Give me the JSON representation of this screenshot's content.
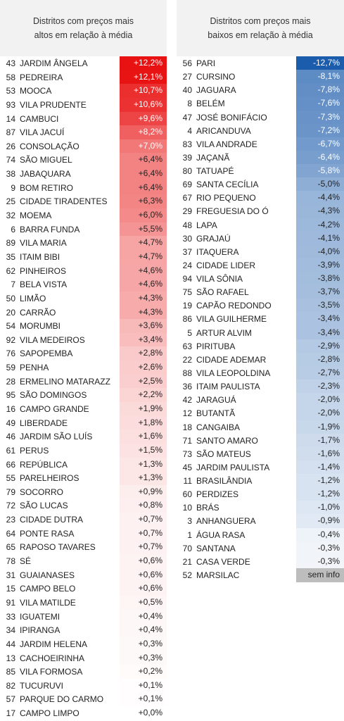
{
  "columns": [
    {
      "header": [
        "Distritos com preços mais",
        "altos em relação à média"
      ],
      "rows": [
        [
          "43",
          "JARDIM ÂNGELA",
          "+12,2%"
        ],
        [
          "58",
          "PEDREIRA",
          "+12,1%"
        ],
        [
          "53",
          "MOOCA",
          "+10,7%"
        ],
        [
          "93",
          "VILA PRUDENTE",
          "+10,6%"
        ],
        [
          "14",
          "CAMBUCI",
          "+9,6%"
        ],
        [
          "87",
          "VILA JACUÍ",
          "+8,2%"
        ],
        [
          "26",
          "CONSOLAÇÃO",
          "+7,0%"
        ],
        [
          "74",
          "SÃO MIGUEL",
          "+6,4%"
        ],
        [
          "38",
          "JABAQUARA",
          "+6,4%"
        ],
        [
          "9",
          "BOM RETIRO",
          "+6,4%"
        ],
        [
          "25",
          "CIDADE TIRADENTES",
          "+6,3%"
        ],
        [
          "32",
          "MOEMA",
          "+6,0%"
        ],
        [
          "6",
          "BARRA FUNDA",
          "+5,5%"
        ],
        [
          "89",
          "VILA MARIA",
          "+4,7%"
        ],
        [
          "35",
          "ITAIM BIBI",
          "+4,7%"
        ],
        [
          "62",
          "PINHEIROS",
          "+4,6%"
        ],
        [
          "7",
          "BELA VISTA",
          "+4,6%"
        ],
        [
          "50",
          "LIMÃO",
          "+4,3%"
        ],
        [
          "20",
          "CARRÃO",
          "+4,3%"
        ],
        [
          "54",
          "MORUMBI",
          "+3,6%"
        ],
        [
          "92",
          "VILA MEDEIROS",
          "+3,4%"
        ],
        [
          "76",
          "SAPOPEMBA",
          "+2,8%"
        ],
        [
          "59",
          "PENHA",
          "+2,6%"
        ],
        [
          "28",
          "ERMELINO MATARAZZ",
          "+2,5%"
        ],
        [
          "95",
          "SÃO DOMINGOS",
          "+2,2%"
        ],
        [
          "16",
          "CAMPO GRANDE",
          "+1,9%"
        ],
        [
          "49",
          "LIBERDADE",
          "+1,8%"
        ],
        [
          "46",
          "JARDIM SÃO LUÍS",
          "+1,6%"
        ],
        [
          "61",
          "PERUS",
          "+1,5%"
        ],
        [
          "66",
          "REPÚBLICA",
          "+1,3%"
        ],
        [
          "55",
          "PARELHEIROS",
          "+1,3%"
        ],
        [
          "79",
          "SOCORRO",
          "+0,9%"
        ],
        [
          "72",
          "SÃO LUCAS",
          "+0,8%"
        ],
        [
          "23",
          "CIDADE DUTRA",
          "+0,7%"
        ],
        [
          "64",
          "PONTE RASA",
          "+0,7%"
        ],
        [
          "65",
          "RAPOSO TAVARES",
          "+0,7%"
        ],
        [
          "78",
          "SÉ",
          "+0,6%"
        ],
        [
          "31",
          "GUAIANASES",
          "+0,6%"
        ],
        [
          "15",
          "CAMPO BELO",
          "+0,6%"
        ],
        [
          "91",
          "VILA MATILDE",
          "+0,5%"
        ],
        [
          "33",
          "IGUATEMI",
          "+0,4%"
        ],
        [
          "34",
          "IPIRANGA",
          "+0,4%"
        ],
        [
          "44",
          "JARDIM HELENA",
          "+0,3%"
        ],
        [
          "13",
          "CACHOEIRINHA",
          "+0,3%"
        ],
        [
          "85",
          "VILA FORMOSA",
          "+0,2%"
        ],
        [
          "82",
          "TUCURUVI",
          "+0,1%"
        ],
        [
          "57",
          "PARQUE DO CARMO",
          "+0,1%"
        ],
        [
          "17",
          "CAMPO LIMPO",
          "+0,0%"
        ]
      ]
    },
    {
      "header": [
        "Distritos com preços mais",
        "baixos em relação à média"
      ],
      "rows": [
        [
          "56",
          "PARI",
          "-12,7%"
        ],
        [
          "27",
          "CURSINO",
          "-8,1%"
        ],
        [
          "40",
          "JAGUARA",
          "-7,8%"
        ],
        [
          "8",
          "BELÉM",
          "-7,6%"
        ],
        [
          "47",
          "JOSÉ BONIFÁCIO",
          "-7,3%"
        ],
        [
          "4",
          "ARICANDUVA",
          "-7,2%"
        ],
        [
          "83",
          "VILA ANDRADE",
          "-6,7%"
        ],
        [
          "39",
          "JAÇANÃ",
          "-6,4%"
        ],
        [
          "80",
          "TATUAPÉ",
          "-5,8%"
        ],
        [
          "69",
          "SANTA CECÍLIA",
          "-5,0%"
        ],
        [
          "67",
          "RIO PEQUENO",
          "-4,4%"
        ],
        [
          "29",
          "FREGUESIA DO Ó",
          "-4,3%"
        ],
        [
          "48",
          "LAPA",
          "-4,2%"
        ],
        [
          "30",
          "GRAJAÚ",
          "-4,1%"
        ],
        [
          "37",
          "ITAQUERA",
          "-4,0%"
        ],
        [
          "24",
          "CIDADE LIDER",
          "-3,9%"
        ],
        [
          "94",
          "VILA SÔNIA",
          "-3,8%"
        ],
        [
          "75",
          "SÃO RAFAEL",
          "-3,7%"
        ],
        [
          "19",
          "CAPÃO REDONDO",
          "-3,5%"
        ],
        [
          "86",
          "VILA GUILHERME",
          "-3,4%"
        ],
        [
          "5",
          "ARTUR ALVIM",
          "-3,4%"
        ],
        [
          "63",
          "PIRITUBA",
          "-2,9%"
        ],
        [
          "22",
          "CIDADE ADEMAR",
          "-2,8%"
        ],
        [
          "88",
          "VILA LEOPOLDINA",
          "-2,7%"
        ],
        [
          "36",
          "ITAIM PAULISTA",
          "-2,3%"
        ],
        [
          "42",
          "JARAGUÁ",
          "-2,0%"
        ],
        [
          "12",
          "BUTANTÃ",
          "-2,0%"
        ],
        [
          "18",
          "CANGAIBA",
          "-1,9%"
        ],
        [
          "71",
          "SANTO AMARO",
          "-1,7%"
        ],
        [
          "73",
          "SÃO MATEUS",
          "-1,6%"
        ],
        [
          "45",
          "JARDIM PAULISTA",
          "-1,4%"
        ],
        [
          "11",
          "BRASILÂNDIA",
          "-1,2%"
        ],
        [
          "60",
          "PERDIZES",
          "-1,2%"
        ],
        [
          "10",
          "BRÁS",
          "-1,0%"
        ],
        [
          "3",
          "ANHANGUERA",
          "-0,9%"
        ],
        [
          "1",
          "ÁGUA RASA",
          "-0,4%"
        ],
        [
          "70",
          "SANTANA",
          "-0,3%"
        ],
        [
          "21",
          "CASA VERDE",
          "-0,3%"
        ],
        [
          "52",
          "MARSILAC",
          "sem info"
        ]
      ]
    }
  ]
}
